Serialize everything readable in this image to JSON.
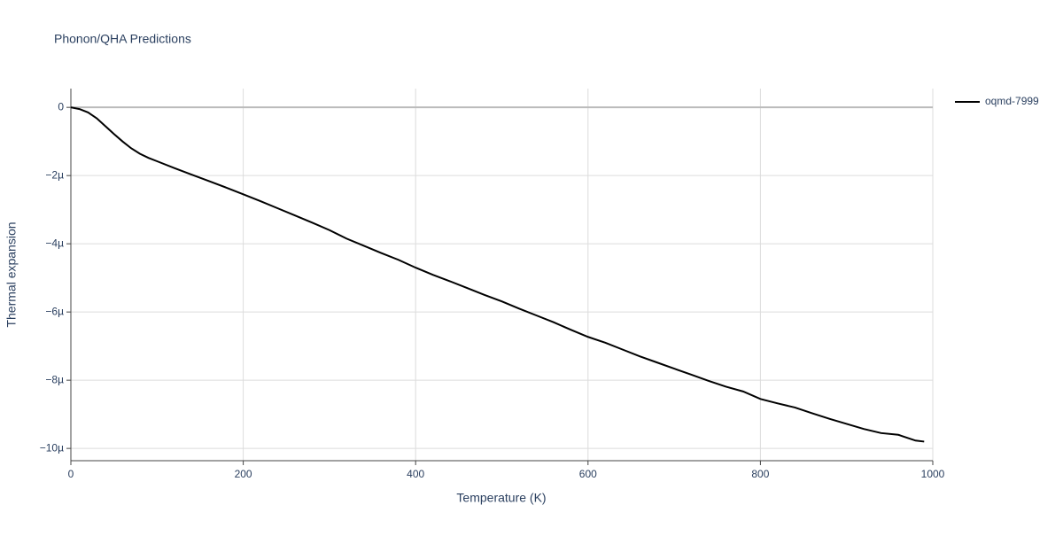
{
  "chart_data": {
    "type": "line",
    "title": "Phonon/QHA Predictions",
    "x_label": "Temperature (K)",
    "y_label": "Thermal expansion",
    "x": [
      0,
      10,
      20,
      30,
      40,
      50,
      60,
      70,
      80,
      90,
      100,
      120,
      140,
      160,
      180,
      200,
      220,
      240,
      260,
      280,
      300,
      320,
      340,
      360,
      380,
      400,
      420,
      440,
      460,
      480,
      500,
      520,
      540,
      560,
      580,
      600,
      620,
      640,
      660,
      680,
      700,
      720,
      740,
      760,
      780,
      800,
      820,
      840,
      860,
      880,
      900,
      920,
      940,
      960,
      980,
      990
    ],
    "series": [
      {
        "name": "oqmd-7999",
        "color": "#000000",
        "values": [
          0,
          -5e-08,
          -1.5e-07,
          -3.2e-07,
          -5.5e-07,
          -7.8e-07,
          -1e-06,
          -1.2e-06,
          -1.36e-06,
          -1.48e-06,
          -1.58e-06,
          -1.78e-06,
          -1.97e-06,
          -2.16e-06,
          -2.35e-06,
          -2.55e-06,
          -2.75e-06,
          -2.96e-06,
          -3.17e-06,
          -3.38e-06,
          -3.6e-06,
          -3.85e-06,
          -4.06e-06,
          -4.27e-06,
          -4.47e-06,
          -4.7e-06,
          -4.91e-06,
          -5.1e-06,
          -5.3e-06,
          -5.5e-06,
          -5.69e-06,
          -5.9e-06,
          -6.1e-06,
          -6.3e-06,
          -6.52e-06,
          -6.73e-06,
          -6.9e-06,
          -7.1e-06,
          -7.3e-06,
          -7.48e-06,
          -7.66e-06,
          -7.84e-06,
          -8.02e-06,
          -8.19e-06,
          -8.33e-06,
          -8.55e-06,
          -8.68e-06,
          -8.8e-06,
          -8.97e-06,
          -9.13e-06,
          -9.28e-06,
          -9.43e-06,
          -9.55e-06,
          -9.6e-06,
          -9.77e-06,
          -9.8e-06
        ]
      }
    ],
    "xlim": [
      0,
      1000
    ],
    "xticks": [
      0,
      200,
      400,
      600,
      800,
      1000
    ],
    "ylim": [
      -1.036e-05,
      5.5e-07
    ],
    "yticks": [
      {
        "value": -1e-05,
        "label": "−10µ"
      },
      {
        "value": -8e-06,
        "label": "−8µ"
      },
      {
        "value": -6e-06,
        "label": "−6µ"
      },
      {
        "value": -4e-06,
        "label": "−4µ"
      },
      {
        "value": -2e-06,
        "label": "−2µ"
      },
      0
    ],
    "grid": true,
    "legend": "top-right"
  }
}
